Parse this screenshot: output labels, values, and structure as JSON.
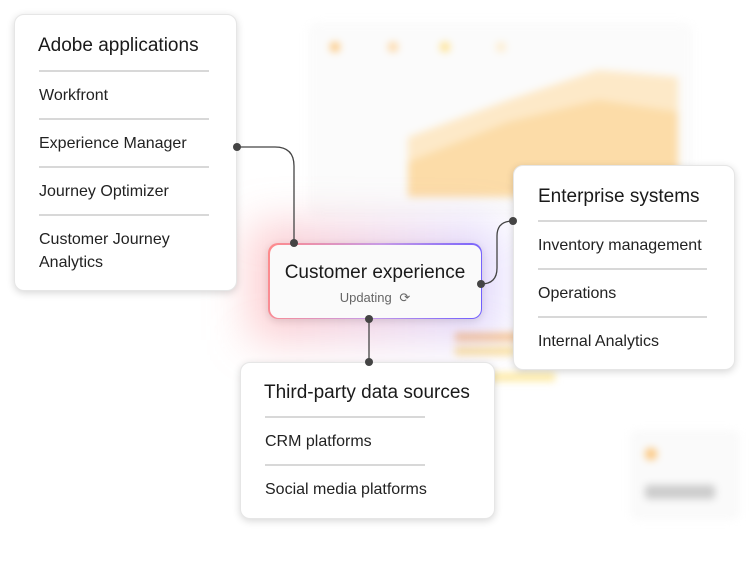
{
  "adobe_applications": {
    "title": "Adobe applications",
    "items": [
      "Workfront",
      "Experience Manager",
      "Journey Optimizer",
      "Customer Journey",
      "Analytics"
    ]
  },
  "enterprise_systems": {
    "title": "Enterprise systems",
    "items": [
      "Inventory management",
      "Operations",
      "Internal Analytics"
    ]
  },
  "customer_experience": {
    "title": "Customer experience",
    "status": "Updating",
    "status_icon": "refresh-icon"
  },
  "third_party": {
    "title": "Third-party data sources",
    "items": [
      "CRM platforms",
      "Social media platforms"
    ]
  },
  "colors": {
    "connector": "#444444",
    "glow_red": "#ff6b6b",
    "glow_purple": "#7b61ff",
    "chart_orange": "#fcd79a"
  }
}
